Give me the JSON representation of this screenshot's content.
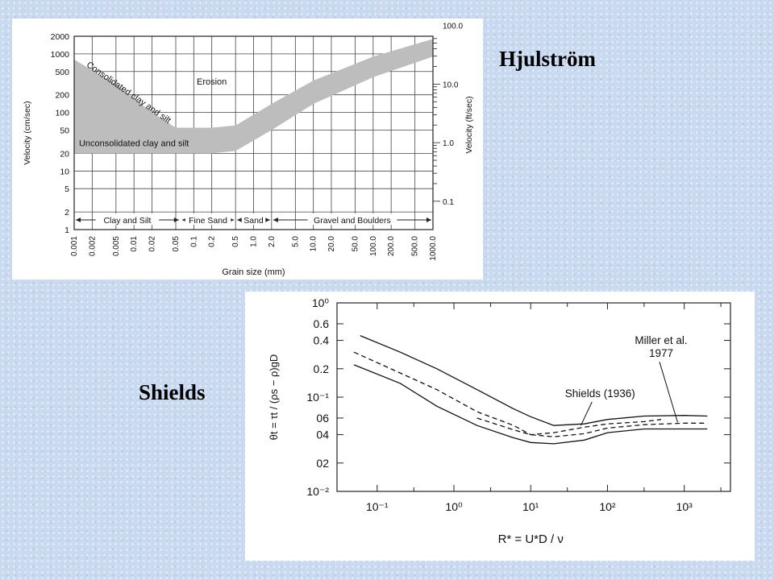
{
  "labels": {
    "hjulstrom": "Hjulström",
    "shields": "Shields"
  },
  "chart_data": [
    {
      "type": "area",
      "name_label": "Hjulström",
      "xlabel": "Grain size (mm)",
      "ylabel_left": "Velocity (cm/sec)",
      "ylabel_right": "Velocity (ft/sec)",
      "x_scale": "log",
      "y_scale": "log",
      "x_ticks": [
        "0.001",
        "0.002",
        "0.005",
        "0.01",
        "0.02",
        "0.05",
        "0.1",
        "0.2",
        "0.5",
        "1.0",
        "2.0",
        "5.0",
        "10.0",
        "20.0",
        "50.0",
        "100.0",
        "200.0",
        "500.0",
        "1000.0"
      ],
      "y_ticks_left": [
        "1",
        "2",
        "5",
        "10",
        "20",
        "50",
        "100",
        "200",
        "500",
        "1000",
        "2000"
      ],
      "y_ticks_right": [
        "0.1",
        "1.0",
        "10.0",
        "100.0"
      ],
      "xlim": [
        0.001,
        1000
      ],
      "ylim": [
        1,
        2000
      ],
      "regions": [
        {
          "label": "Erosion",
          "x": 0.2,
          "y": 300
        },
        {
          "label": "Consolidated clay and silt",
          "x": 0.006,
          "y": 200
        },
        {
          "label": "Unconsolidated clay and silt",
          "x": 0.01,
          "y": 30
        }
      ],
      "band": {
        "upper": [
          [
            0.001,
            800
          ],
          [
            0.005,
            300
          ],
          [
            0.02,
            100
          ],
          [
            0.05,
            55
          ],
          [
            0.2,
            55
          ],
          [
            0.5,
            60
          ],
          [
            2,
            140
          ],
          [
            10,
            350
          ],
          [
            100,
            900
          ],
          [
            1000,
            1800
          ]
        ],
        "lower": [
          [
            0.001,
            20
          ],
          [
            0.05,
            20
          ],
          [
            0.2,
            20
          ],
          [
            0.5,
            22
          ],
          [
            2,
            50
          ],
          [
            10,
            140
          ],
          [
            100,
            400
          ],
          [
            1000,
            900
          ]
        ]
      },
      "size_classes": [
        {
          "label": "Clay and Silt",
          "from": 0.001,
          "to": 0.06
        },
        {
          "label": "Fine Sand",
          "from": 0.06,
          "to": 0.5
        },
        {
          "label": "Sand",
          "from": 0.5,
          "to": 2
        },
        {
          "label": "Gravel and Boulders",
          "from": 2,
          "to": 1000
        }
      ]
    },
    {
      "type": "line",
      "name_label": "Shields",
      "ylabel": "θt = τt / (ρs − ρ)gD",
      "xlabel": "R* = U*D / ν",
      "x_scale": "log",
      "x_ticks": [
        "10⁻¹",
        "10⁰",
        "10¹",
        "10²",
        "10³"
      ],
      "y_ticks": [
        "10⁰",
        "0.6",
        "0.4",
        "0.2",
        "10⁻¹",
        "06",
        "04",
        "02",
        "10⁻²"
      ],
      "xlim": [
        0.03,
        4000
      ],
      "ylim": [
        0.01,
        1
      ],
      "series": [
        {
          "name": "Miller et al. 1977 (upper)",
          "style": "solid",
          "points": [
            [
              0.06,
              0.45
            ],
            [
              0.2,
              0.3
            ],
            [
              0.6,
              0.2
            ],
            [
              2,
              0.12
            ],
            [
              6,
              0.075
            ],
            [
              10,
              0.062
            ],
            [
              20,
              0.05
            ],
            [
              50,
              0.052
            ],
            [
              100,
              0.058
            ],
            [
              300,
              0.063
            ],
            [
              1000,
              0.064
            ],
            [
              2000,
              0.063
            ]
          ]
        },
        {
          "name": "Shields (1936)",
          "style": "dashed",
          "points": [
            [
              0.05,
              0.3
            ],
            [
              0.2,
              0.18
            ],
            [
              0.6,
              0.12
            ],
            [
              2,
              0.07
            ],
            [
              6,
              0.05
            ],
            [
              10,
              0.04
            ],
            [
              20,
              0.042
            ],
            [
              50,
              0.048
            ],
            [
              100,
              0.052
            ],
            [
              300,
              0.055
            ],
            [
              500,
              0.058
            ]
          ]
        },
        {
          "name": "Miller et al. 1977 (lower)",
          "style": "solid",
          "points": [
            [
              0.05,
              0.22
            ],
            [
              0.2,
              0.14
            ],
            [
              0.6,
              0.08
            ],
            [
              2,
              0.05
            ],
            [
              6,
              0.037
            ],
            [
              10,
              0.033
            ],
            [
              20,
              0.032
            ],
            [
              50,
              0.035
            ],
            [
              100,
              0.042
            ],
            [
              300,
              0.046
            ],
            [
              1000,
              0.046
            ],
            [
              2000,
              0.046
            ]
          ]
        },
        {
          "name": "Miller et al. 1977 (middle)",
          "style": "dashed",
          "points": [
            [
              2,
              0.06
            ],
            [
              6,
              0.045
            ],
            [
              10,
              0.04
            ],
            [
              20,
              0.038
            ],
            [
              50,
              0.041
            ],
            [
              100,
              0.047
            ],
            [
              300,
              0.051
            ],
            [
              1000,
              0.053
            ],
            [
              2000,
              0.053
            ]
          ]
        }
      ],
      "annotations": [
        {
          "label": "Shields (1936)",
          "x": 80,
          "y": 0.1
        },
        {
          "label_line1": "Miller et al.",
          "label_line2": "1977",
          "x": 500,
          "y": 0.3
        }
      ]
    }
  ]
}
